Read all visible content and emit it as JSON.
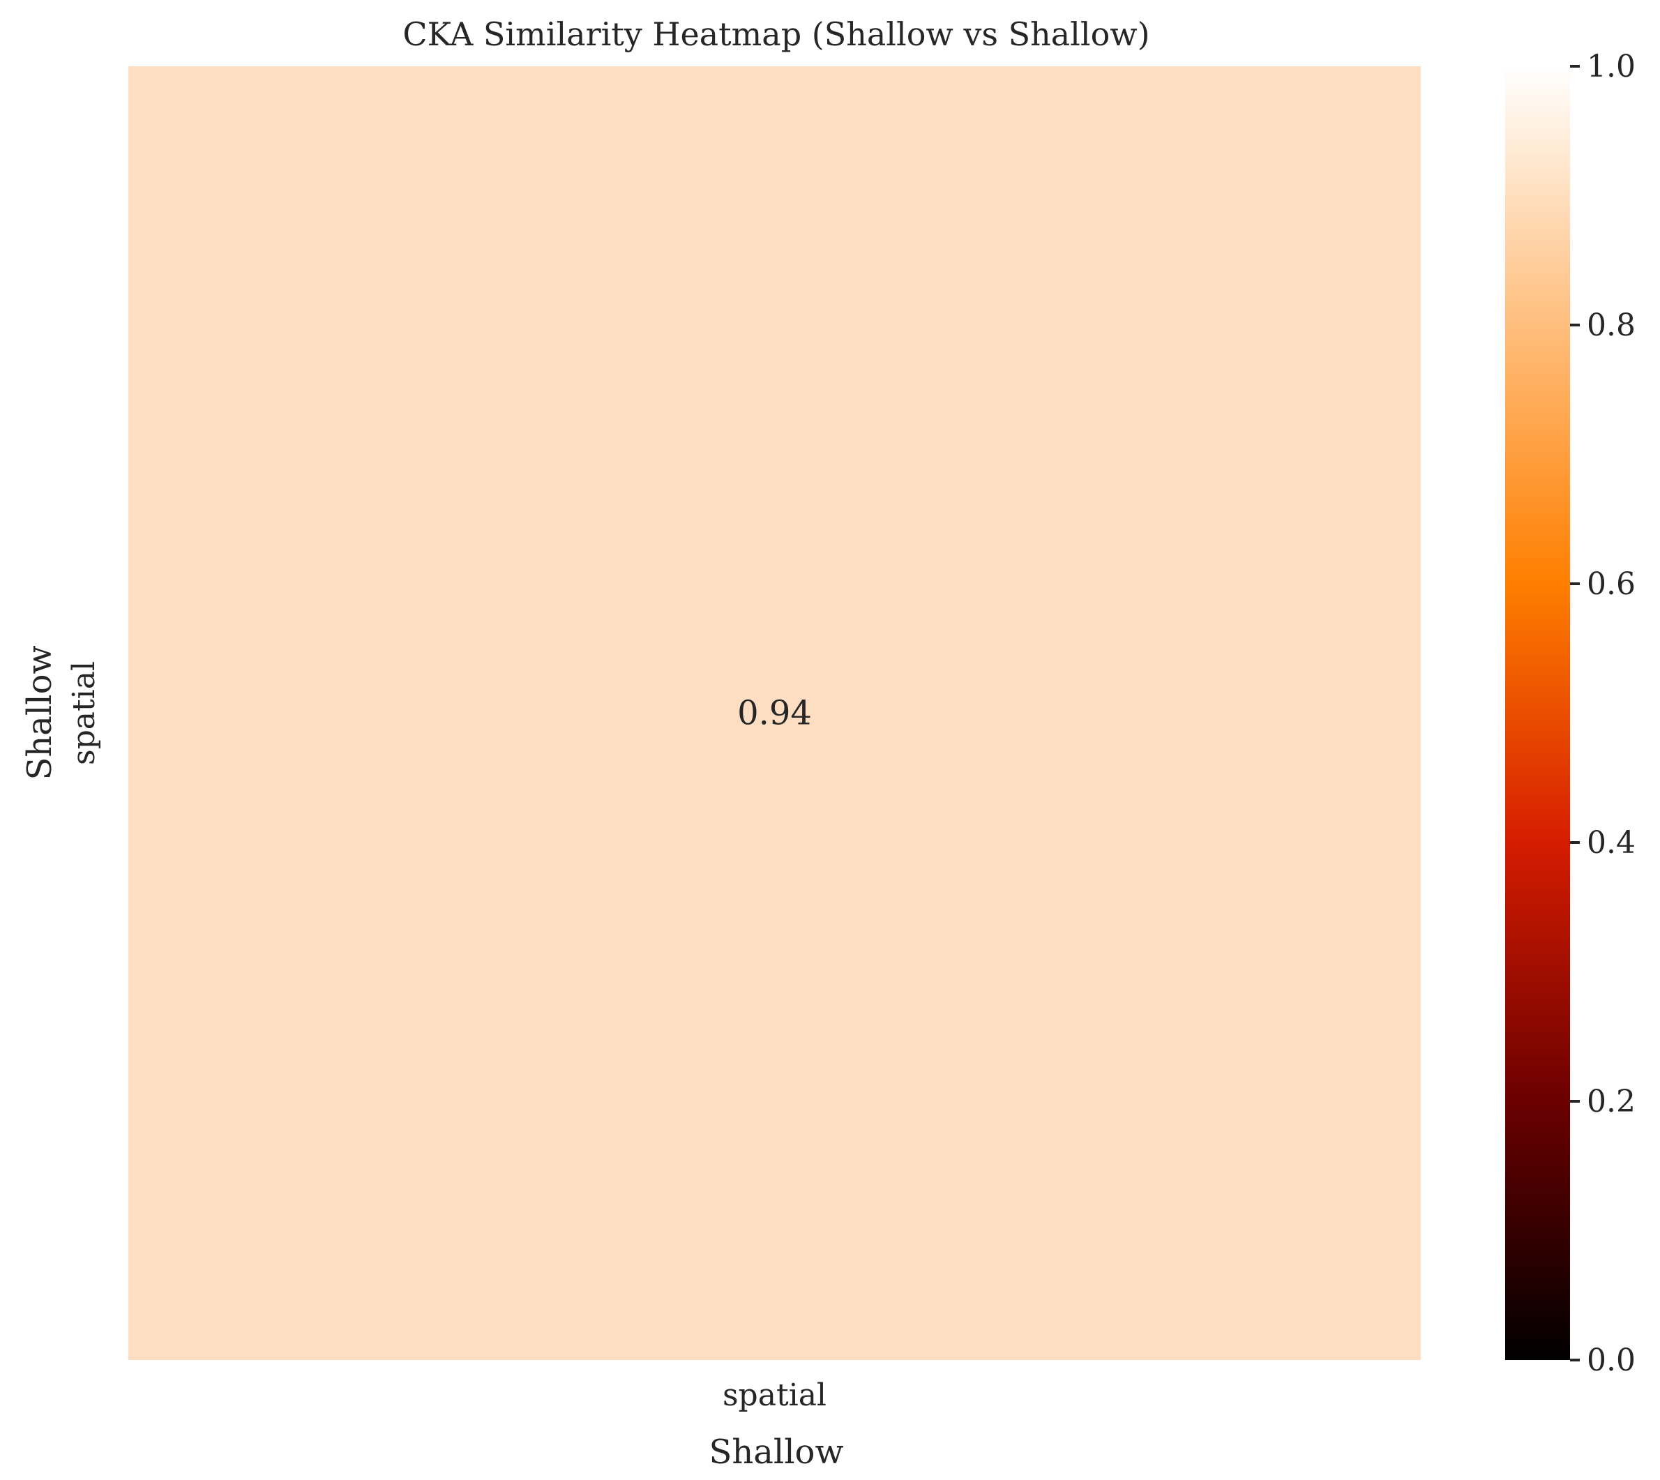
{
  "chart_data": {
    "type": "heatmap",
    "title": "CKA Similarity Heatmap (Shallow vs Shallow)",
    "xlabel": "Shallow",
    "ylabel": "Shallow",
    "x_categories": [
      "spatial"
    ],
    "y_categories": [
      "spatial"
    ],
    "values": [
      [
        0.94
      ]
    ],
    "cell_labels": [
      [
        "0.94"
      ]
    ],
    "colorbar": {
      "colormap": "gist_heat",
      "range": [
        0.0,
        1.0
      ],
      "ticks": [
        0.0,
        0.2,
        0.4,
        0.6,
        0.8,
        1.0
      ],
      "tick_labels": [
        "0.0",
        "0.2",
        "0.4",
        "0.6",
        "0.8",
        "1.0"
      ]
    },
    "grid": false,
    "colors": {
      "cell": "#FEDEC2",
      "text": "#262626",
      "gradient_stops": [
        "#000000",
        "#6B0000",
        "#D51C00",
        "#FF7F00",
        "#FFBE7D",
        "#FFFFFF"
      ]
    }
  }
}
